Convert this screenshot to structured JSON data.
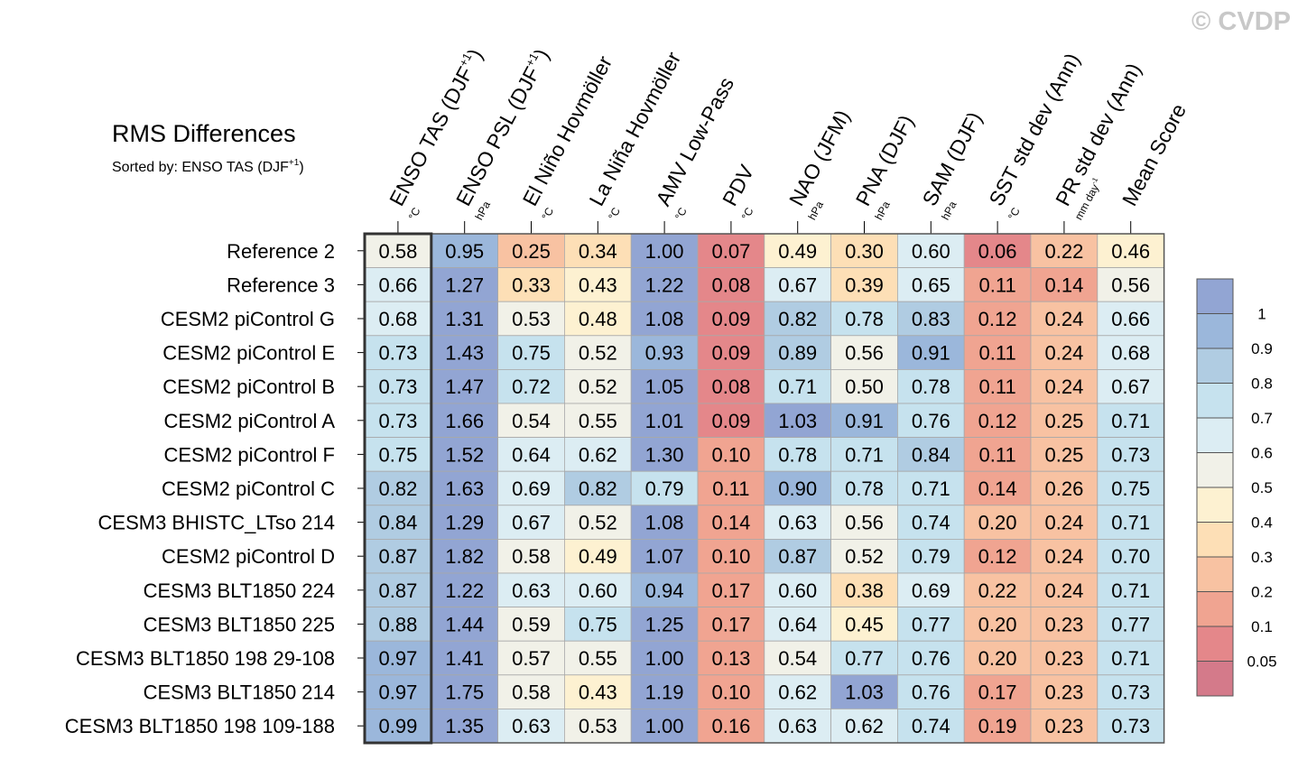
{
  "watermark": "© CVDP",
  "chart_data": {
    "type": "heatmap",
    "title": "RMS Differences",
    "subtitle_prefix": "Sorted by: ENSO TAS (DJF",
    "subtitle_sup": "+1",
    "subtitle_suffix": ")",
    "columns": [
      {
        "label": "ENSO TAS (DJF",
        "sup": "+1",
        "suffix": ")",
        "unit": "°C",
        "unit_sup": ""
      },
      {
        "label": "ENSO PSL (DJF",
        "sup": "+1",
        "suffix": ")",
        "unit": "hPa",
        "unit_sup": ""
      },
      {
        "label": "El Niño Hovmöller",
        "sup": "",
        "suffix": "",
        "unit": "°C",
        "unit_sup": ""
      },
      {
        "label": "La Niña Hovmöller",
        "sup": "",
        "suffix": "",
        "unit": "°C",
        "unit_sup": ""
      },
      {
        "label": "AMV Low-Pass",
        "sup": "",
        "suffix": "",
        "unit": "°C",
        "unit_sup": ""
      },
      {
        "label": "PDV",
        "sup": "",
        "suffix": "",
        "unit": "°C",
        "unit_sup": ""
      },
      {
        "label": "NAO (JFM)",
        "sup": "",
        "suffix": "",
        "unit": "hPa",
        "unit_sup": ""
      },
      {
        "label": "PNA (DJF)",
        "sup": "",
        "suffix": "",
        "unit": "hPa",
        "unit_sup": ""
      },
      {
        "label": "SAM (DJF)",
        "sup": "",
        "suffix": "",
        "unit": "hPa",
        "unit_sup": ""
      },
      {
        "label": "SST std dev (Ann)",
        "sup": "",
        "suffix": "",
        "unit": "°C",
        "unit_sup": ""
      },
      {
        "label": "PR std dev (Ann)",
        "sup": "",
        "suffix": "",
        "unit": "mm day",
        "unit_sup": "-1"
      },
      {
        "label": "Mean Score",
        "sup": "",
        "suffix": "",
        "unit": "",
        "unit_sup": ""
      }
    ],
    "rows": [
      "Reference 2",
      "Reference 3",
      "CESM2 piControl G",
      "CESM2 piControl E",
      "CESM2 piControl B",
      "CESM2 piControl A",
      "CESM2 piControl F",
      "CESM2 piControl C",
      "CESM3 BHISTC_LTso 214",
      "CESM2 piControl D",
      "CESM3 BLT1850 224",
      "CESM3 BLT1850 225",
      "CESM3 BLT1850 198 29-108",
      "CESM3 BLT1850 214",
      "CESM3 BLT1850 198 109-188"
    ],
    "values": [
      [
        "0.58",
        "0.95",
        "0.25",
        "0.34",
        "1.00",
        "0.07",
        "0.49",
        "0.30",
        "0.60",
        "0.06",
        "0.22",
        "0.46"
      ],
      [
        "0.66",
        "1.27",
        "0.33",
        "0.43",
        "1.22",
        "0.08",
        "0.67",
        "0.39",
        "0.65",
        "0.11",
        "0.14",
        "0.56"
      ],
      [
        "0.68",
        "1.31",
        "0.53",
        "0.48",
        "1.08",
        "0.09",
        "0.82",
        "0.78",
        "0.83",
        "0.12",
        "0.24",
        "0.66"
      ],
      [
        "0.73",
        "1.43",
        "0.75",
        "0.52",
        "0.93",
        "0.09",
        "0.89",
        "0.56",
        "0.91",
        "0.11",
        "0.24",
        "0.68"
      ],
      [
        "0.73",
        "1.47",
        "0.72",
        "0.52",
        "1.05",
        "0.08",
        "0.71",
        "0.50",
        "0.78",
        "0.11",
        "0.24",
        "0.67"
      ],
      [
        "0.73",
        "1.66",
        "0.54",
        "0.55",
        "1.01",
        "0.09",
        "1.03",
        "0.91",
        "0.76",
        "0.12",
        "0.25",
        "0.71"
      ],
      [
        "0.75",
        "1.52",
        "0.64",
        "0.62",
        "1.30",
        "0.10",
        "0.78",
        "0.71",
        "0.84",
        "0.11",
        "0.25",
        "0.73"
      ],
      [
        "0.82",
        "1.63",
        "0.69",
        "0.82",
        "0.79",
        "0.11",
        "0.90",
        "0.78",
        "0.71",
        "0.14",
        "0.26",
        "0.75"
      ],
      [
        "0.84",
        "1.29",
        "0.67",
        "0.52",
        "1.08",
        "0.14",
        "0.63",
        "0.56",
        "0.74",
        "0.20",
        "0.24",
        "0.71"
      ],
      [
        "0.87",
        "1.82",
        "0.58",
        "0.49",
        "1.07",
        "0.10",
        "0.87",
        "0.52",
        "0.79",
        "0.12",
        "0.24",
        "0.70"
      ],
      [
        "0.87",
        "1.22",
        "0.63",
        "0.60",
        "0.94",
        "0.17",
        "0.60",
        "0.38",
        "0.69",
        "0.22",
        "0.24",
        "0.71"
      ],
      [
        "0.88",
        "1.44",
        "0.59",
        "0.75",
        "1.25",
        "0.17",
        "0.64",
        "0.45",
        "0.77",
        "0.20",
        "0.23",
        "0.77"
      ],
      [
        "0.97",
        "1.41",
        "0.57",
        "0.55",
        "1.00",
        "0.13",
        "0.54",
        "0.77",
        "0.76",
        "0.20",
        "0.23",
        "0.71"
      ],
      [
        "0.97",
        "1.75",
        "0.58",
        "0.43",
        "1.19",
        "0.10",
        "0.62",
        "1.03",
        "0.76",
        "0.17",
        "0.23",
        "0.73"
      ],
      [
        "0.99",
        "1.35",
        "0.63",
        "0.53",
        "1.00",
        "0.16",
        "0.63",
        "0.62",
        "0.74",
        "0.19",
        "0.23",
        "0.73"
      ]
    ],
    "sorted_column": 0,
    "colorbar": {
      "levels": [
        0.05,
        0.1,
        0.2,
        0.3,
        0.4,
        0.5,
        0.6,
        0.7,
        0.8,
        0.9,
        1
      ],
      "labels": [
        "0.05",
        "0.1",
        "0.2",
        "0.3",
        "0.4",
        "0.5",
        "0.6",
        "0.7",
        "0.8",
        "0.9",
        "1"
      ],
      "colors": [
        "#d47a8a",
        "#e4878a",
        "#f0a491",
        "#f8c2a2",
        "#fddfb6",
        "#fdf1d1",
        "#f1f1e8",
        "#dcedf3",
        "#c6e2ee",
        "#b0cce2",
        "#9bb7db",
        "#92a5d3"
      ]
    }
  }
}
